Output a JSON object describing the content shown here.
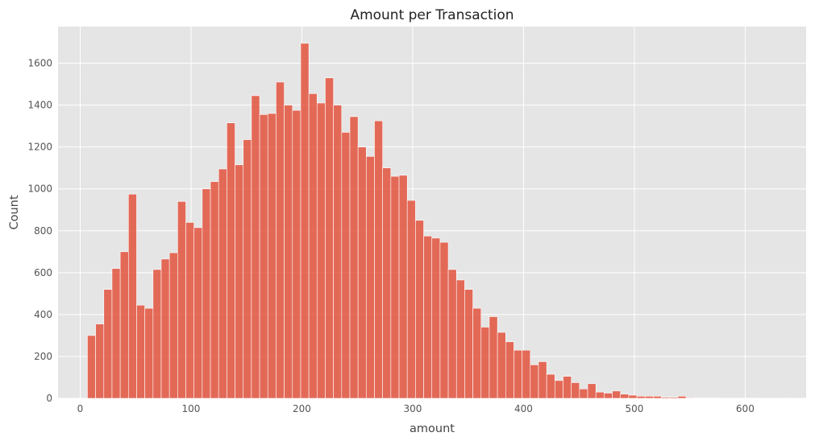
{
  "chart_data": {
    "type": "bar",
    "title": "Amount per Transaction",
    "xlabel": "amount",
    "ylabel": "Count",
    "xlim": [
      -20,
      655
    ],
    "ylim": [
      0,
      1775
    ],
    "xticks": [
      0,
      100,
      200,
      300,
      400,
      500,
      600
    ],
    "yticks": [
      0,
      200,
      400,
      600,
      800,
      1000,
      1200,
      1400,
      1600
    ],
    "grid": true,
    "bar_color": "#e24a33",
    "background_color": "#e5e5e5",
    "bin_start": 6.5,
    "bin_width": 7.4,
    "values": [
      300,
      355,
      520,
      620,
      700,
      975,
      445,
      430,
      615,
      665,
      695,
      940,
      840,
      815,
      1000,
      1035,
      1095,
      1315,
      1115,
      1235,
      1445,
      1355,
      1360,
      1510,
      1400,
      1375,
      1695,
      1455,
      1410,
      1530,
      1400,
      1270,
      1345,
      1200,
      1155,
      1325,
      1100,
      1060,
      1065,
      945,
      850,
      775,
      765,
      745,
      615,
      565,
      520,
      430,
      340,
      390,
      315,
      270,
      230,
      230,
      160,
      175,
      115,
      85,
      105,
      75,
      45,
      70,
      30,
      25,
      35,
      20,
      15,
      10,
      10,
      10,
      5,
      5,
      10,
      3,
      2,
      2,
      2,
      1,
      1,
      1,
      1,
      1,
      0,
      0,
      0,
      1,
      0,
      0,
      0,
      1
    ]
  }
}
